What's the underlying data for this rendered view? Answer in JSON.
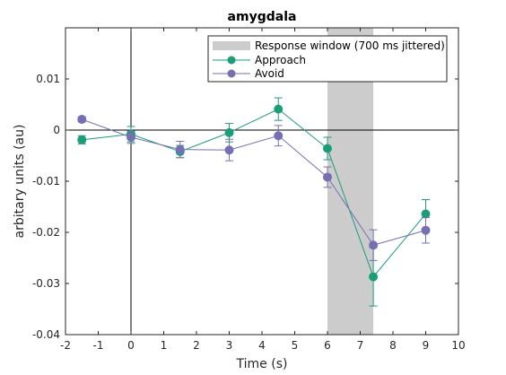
{
  "chart_data": {
    "type": "line",
    "title": "amygdala",
    "xlabel": "Time (s)",
    "ylabel": "arbitary units (au)",
    "xlim": [
      -2,
      10
    ],
    "ylim": [
      -0.04,
      0.02
    ],
    "xticks": [
      -2,
      -1,
      0,
      1,
      2,
      3,
      4,
      5,
      6,
      7,
      8,
      9,
      10
    ],
    "xtick_labels": [
      "-2",
      "-1",
      "0",
      "1",
      "2",
      "3",
      "4",
      "5",
      "6",
      "7",
      "8",
      "9",
      "10"
    ],
    "yticks": [
      -0.04,
      -0.03,
      -0.02,
      -0.01,
      0,
      0.01
    ],
    "ytick_labels": [
      "-0.04",
      "-0.03",
      "-0.02",
      "-0.01",
      "0",
      "0.01"
    ],
    "reference_lines": {
      "x": 0,
      "y": 0
    },
    "shaded_region": {
      "label": "Response window (700 ms jittered)",
      "x": [
        6.0,
        7.4
      ],
      "color": "#cccccc"
    },
    "x": [
      -1.5,
      0,
      1.5,
      3,
      4.5,
      6,
      7.5,
      9
    ],
    "series": [
      {
        "name": "Approach",
        "color": "#1b9e77",
        "x": [
          -1.5,
          0,
          1.5,
          3,
          4.5,
          6,
          7.4,
          9
        ],
        "values": [
          -0.0019,
          -0.0008,
          -0.0042,
          -0.0005,
          0.0041,
          -0.0036,
          -0.0287,
          -0.0164
        ],
        "error": [
          0.0008,
          0.0015,
          0.0012,
          0.0018,
          0.0022,
          0.0022,
          0.0057,
          0.0028
        ]
      },
      {
        "name": "Avoid",
        "color": "#7570b3",
        "x": [
          -1.5,
          0,
          1.5,
          3,
          4.5,
          6,
          7.4,
          9
        ],
        "values": [
          0.0021,
          -0.0014,
          -0.0038,
          -0.0039,
          -0.0011,
          -0.0092,
          -0.0225,
          -0.0196
        ],
        "error": [
          0.0005,
          0.0012,
          0.0016,
          0.0021,
          0.002,
          0.002,
          0.003,
          0.0025
        ]
      }
    ],
    "legend": {
      "placement": "top-right",
      "entries": [
        "Response window (700 ms jittered)",
        "Approach",
        "Avoid"
      ]
    },
    "grid": false
  }
}
